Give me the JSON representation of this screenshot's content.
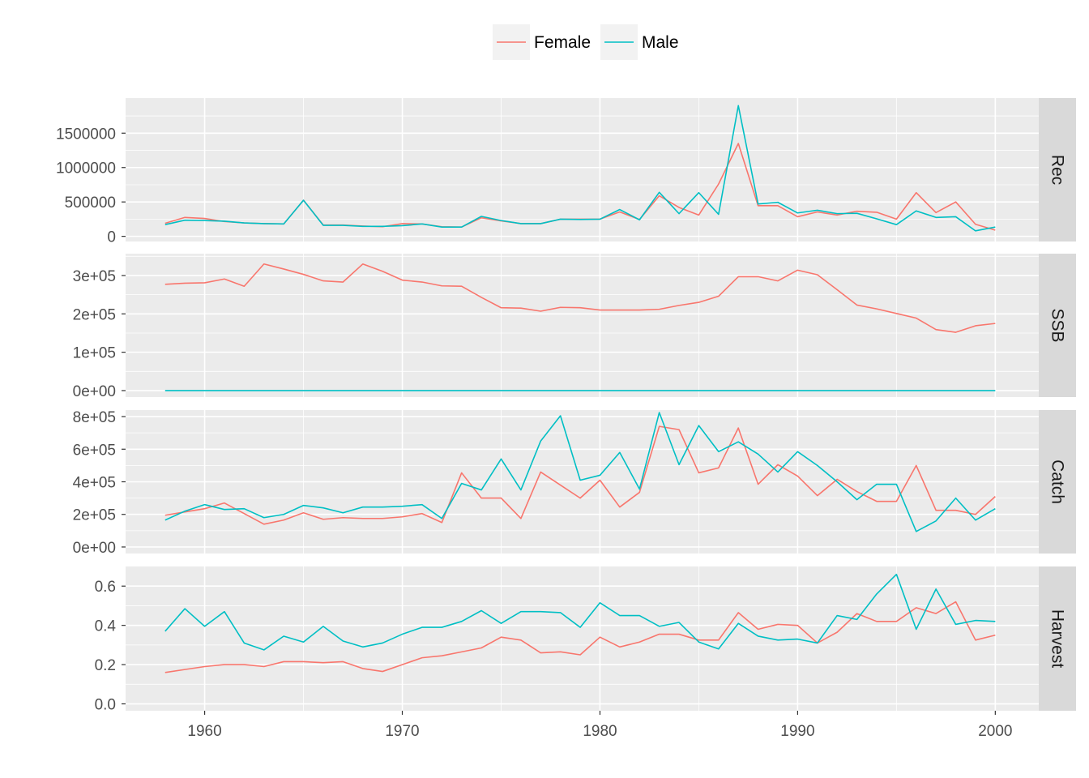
{
  "chart_data": {
    "type": "line",
    "facet_layout": "rows",
    "legend": {
      "position": "top",
      "entries": [
        {
          "name": "Female",
          "color": "#F8766D"
        },
        {
          "name": "Male",
          "color": "#00BFC4"
        }
      ]
    },
    "x": [
      1958,
      1959,
      1960,
      1961,
      1962,
      1963,
      1964,
      1965,
      1966,
      1967,
      1968,
      1969,
      1970,
      1971,
      1972,
      1973,
      1974,
      1975,
      1976,
      1977,
      1978,
      1979,
      1980,
      1981,
      1982,
      1983,
      1984,
      1985,
      1986,
      1987,
      1988,
      1989,
      1990,
      1991,
      1992,
      1993,
      1994,
      1995,
      1996,
      1997,
      1998,
      1999,
      2000
    ],
    "xlim": [
      1956,
      2002.2
    ],
    "x_ticks": [
      {
        "value": 1960,
        "label": "1960"
      },
      {
        "value": 1970,
        "label": "1970"
      },
      {
        "value": 1980,
        "label": "1980"
      },
      {
        "value": 1990,
        "label": "1990"
      },
      {
        "value": 2000,
        "label": "2000"
      }
    ],
    "grid": true,
    "panels": [
      {
        "label": "Rec",
        "ylim": [
          -75000,
          2010000
        ],
        "y_ticks": [
          {
            "value": 0,
            "label": "0"
          },
          {
            "value": 500000,
            "label": "500000"
          },
          {
            "value": 1000000,
            "label": "1000000"
          },
          {
            "value": 1500000,
            "label": "1500000"
          }
        ],
        "series": [
          {
            "name": "Female",
            "values": [
              190000,
              275000,
              260000,
              215000,
              195000,
              185000,
              180000,
              525000,
              165000,
              165000,
              150000,
              140000,
              185000,
              180000,
              140000,
              135000,
              270000,
              225000,
              185000,
              185000,
              250000,
              250000,
              250000,
              355000,
              245000,
              590000,
              420000,
              310000,
              760000,
              1350000,
              445000,
              445000,
              285000,
              355000,
              310000,
              365000,
              350000,
              250000,
              635000,
              345000,
              500000,
              175000,
              90000
            ]
          },
          {
            "name": "Male",
            "values": [
              170000,
              235000,
              230000,
              220000,
              195000,
              185000,
              180000,
              525000,
              160000,
              160000,
              145000,
              145000,
              155000,
              180000,
              135000,
              135000,
              290000,
              230000,
              185000,
              185000,
              250000,
              245000,
              250000,
              390000,
              240000,
              640000,
              330000,
              635000,
              320000,
              1900000,
              470000,
              495000,
              340000,
              380000,
              330000,
              335000,
              255000,
              170000,
              370000,
              275000,
              285000,
              80000,
              135000
            ]
          }
        ]
      },
      {
        "label": "SSB",
        "ylim": [
          -17000,
          357000
        ],
        "y_ticks": [
          {
            "value": 0,
            "label": "0e+00"
          },
          {
            "value": 100000,
            "label": "1e+05"
          },
          {
            "value": 200000,
            "label": "2e+05"
          },
          {
            "value": 300000,
            "label": "3e+05"
          }
        ],
        "series": [
          {
            "name": "Female",
            "values": [
              277000,
              280000,
              281000,
              291000,
              272000,
              330000,
              317000,
              303000,
              286000,
              283000,
              330000,
              311000,
              288000,
              283000,
              273000,
              272000,
              243000,
              216000,
              215000,
              207000,
              217000,
              216000,
              210000,
              210000,
              210000,
              212000,
              222000,
              230000,
              246000,
              297000,
              297000,
              286000,
              314000,
              302000,
              263000,
              223000,
              213000,
              201000,
              189000,
              159000,
              152000,
              169000,
              175000
            ]
          },
          {
            "name": "Male",
            "values": [
              0,
              0,
              0,
              0,
              0,
              0,
              0,
              0,
              0,
              0,
              0,
              0,
              0,
              0,
              0,
              0,
              0,
              0,
              0,
              0,
              0,
              0,
              0,
              0,
              0,
              0,
              0,
              0,
              0,
              0,
              0,
              0,
              0,
              0,
              0,
              0,
              0,
              0,
              0,
              0,
              0,
              0,
              0
            ]
          }
        ]
      },
      {
        "label": "Catch",
        "ylim": [
          -40000,
          840000
        ],
        "y_ticks": [
          {
            "value": 0,
            "label": "0e+00"
          },
          {
            "value": 200000,
            "label": "2e+05"
          },
          {
            "value": 400000,
            "label": "4e+05"
          },
          {
            "value": 600000,
            "label": "6e+05"
          },
          {
            "value": 800000,
            "label": "8e+05"
          }
        ],
        "series": [
          {
            "name": "Female",
            "values": [
              195000,
              215000,
              235000,
              270000,
              205000,
              140000,
              165000,
              210000,
              170000,
              180000,
              175000,
              175000,
              185000,
              205000,
              150000,
              455000,
              300000,
              300000,
              175000,
              460000,
              380000,
              300000,
              410000,
              245000,
              335000,
              740000,
              720000,
              455000,
              485000,
              730000,
              385000,
              505000,
              435000,
              315000,
              415000,
              340000,
              280000,
              280000,
              500000,
              225000,
              225000,
              200000,
              310000
            ]
          },
          {
            "name": "Male",
            "values": [
              165000,
              220000,
              260000,
              230000,
              235000,
              180000,
              200000,
              255000,
              240000,
              210000,
              245000,
              245000,
              250000,
              260000,
              175000,
              390000,
              350000,
              540000,
              350000,
              650000,
              805000,
              410000,
              440000,
              580000,
              355000,
              825000,
              505000,
              745000,
              585000,
              645000,
              570000,
              460000,
              585000,
              500000,
              400000,
              290000,
              385000,
              385000,
              95000,
              160000,
              300000,
              165000,
              235000
            ]
          }
        ]
      },
      {
        "label": "Harvest",
        "ylim": [
          -0.035,
          0.7
        ],
        "y_ticks": [
          {
            "value": 0,
            "label": "0.0"
          },
          {
            "value": 0.2,
            "label": "0.2"
          },
          {
            "value": 0.4,
            "label": "0.4"
          },
          {
            "value": 0.6,
            "label": "0.6"
          }
        ],
        "series": [
          {
            "name": "Female",
            "values": [
              0.16,
              0.175,
              0.19,
              0.2,
              0.2,
              0.19,
              0.215,
              0.215,
              0.21,
              0.215,
              0.18,
              0.165,
              0.2,
              0.235,
              0.245,
              0.265,
              0.285,
              0.34,
              0.325,
              0.26,
              0.265,
              0.25,
              0.34,
              0.29,
              0.315,
              0.355,
              0.355,
              0.325,
              0.325,
              0.465,
              0.38,
              0.405,
              0.4,
              0.31,
              0.365,
              0.46,
              0.42,
              0.42,
              0.49,
              0.46,
              0.52,
              0.325,
              0.35
            ]
          },
          {
            "name": "Male",
            "values": [
              0.37,
              0.485,
              0.395,
              0.47,
              0.31,
              0.275,
              0.345,
              0.315,
              0.395,
              0.32,
              0.29,
              0.31,
              0.355,
              0.39,
              0.39,
              0.42,
              0.475,
              0.41,
              0.47,
              0.47,
              0.465,
              0.39,
              0.515,
              0.45,
              0.45,
              0.395,
              0.415,
              0.315,
              0.28,
              0.41,
              0.345,
              0.325,
              0.33,
              0.31,
              0.45,
              0.43,
              0.56,
              0.66,
              0.38,
              0.585,
              0.405,
              0.425,
              0.42
            ]
          }
        ]
      }
    ]
  }
}
